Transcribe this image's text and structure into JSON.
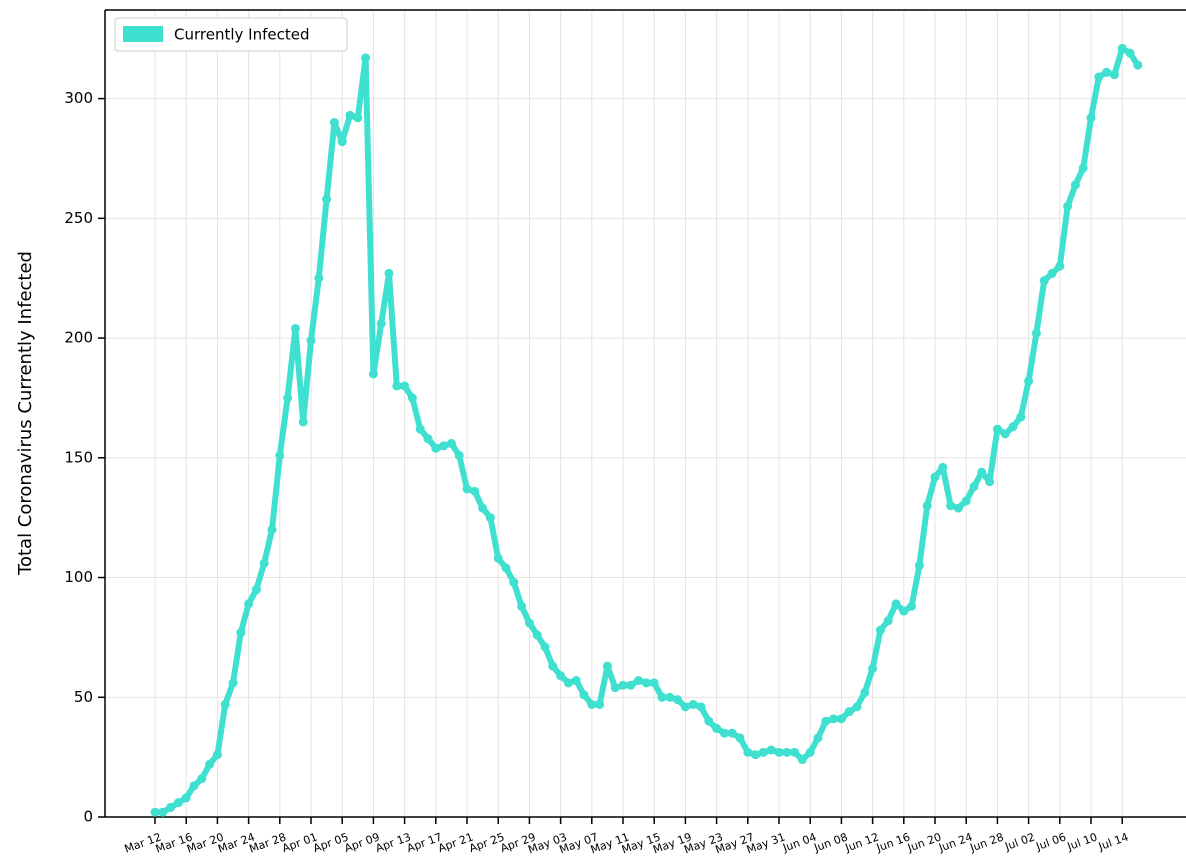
{
  "chart_data": {
    "type": "line",
    "ylabel": "Total Coronavirus Currently Infected",
    "categories": [
      "Mar 12",
      null,
      null,
      null,
      "Mar 16",
      null,
      null,
      null,
      "Mar 20",
      null,
      null,
      null,
      "Mar 24",
      null,
      null,
      null,
      "Mar 28",
      null,
      null,
      null,
      "Apr 01",
      null,
      null,
      null,
      "Apr 05",
      null,
      null,
      null,
      "Apr 09",
      null,
      null,
      null,
      "Apr 13",
      null,
      null,
      null,
      "Apr 17",
      null,
      null,
      null,
      "Apr 21",
      null,
      null,
      null,
      "Apr 25",
      null,
      null,
      null,
      "Apr 29",
      null,
      null,
      null,
      "May 03",
      null,
      null,
      null,
      "May 07",
      null,
      null,
      null,
      "May 11",
      null,
      null,
      null,
      "May 15",
      null,
      null,
      null,
      "May 19",
      null,
      null,
      null,
      "May 23",
      null,
      null,
      null,
      "May 27",
      null,
      null,
      null,
      "May 31",
      null,
      null,
      null,
      "Jun 04",
      null,
      null,
      null,
      "Jun 08",
      null,
      null,
      null,
      "Jun 12",
      null,
      null,
      null,
      "Jun 16",
      null,
      null,
      null,
      "Jun 20",
      null,
      null,
      null,
      "Jun 24",
      null,
      null,
      null,
      "Jun 28",
      null,
      null,
      null,
      "Jul 02",
      null,
      null,
      null,
      "Jul 06",
      null,
      null,
      null,
      "Jul 10",
      null,
      null,
      null,
      "Jul 14",
      null,
      null
    ],
    "series": [
      {
        "name": "Currently Infected",
        "color": "#40e0d0",
        "values": [
          2,
          2,
          4,
          6,
          8,
          13,
          16,
          22,
          26,
          47,
          56,
          77,
          89,
          95,
          106,
          120,
          151,
          175,
          204,
          165,
          199,
          225,
          258,
          290,
          282,
          293,
          292,
          317,
          185,
          206,
          227,
          180,
          180,
          175,
          162,
          158,
          154,
          155,
          156,
          151,
          137,
          136,
          129,
          125,
          108,
          104,
          98,
          88,
          81,
          76,
          71,
          63,
          59,
          56,
          57,
          51,
          47,
          47,
          63,
          54,
          55,
          55,
          57,
          56,
          56,
          50,
          50,
          49,
          46,
          47,
          46,
          40,
          37,
          35,
          35,
          33,
          27,
          26,
          27,
          28,
          27,
          27,
          27,
          24,
          27,
          33,
          40,
          41,
          41,
          44,
          46,
          52,
          62,
          78,
          82,
          89,
          86,
          88,
          105,
          130,
          142,
          146,
          130,
          129,
          132,
          138,
          144,
          140,
          162,
          160,
          163,
          167,
          182,
          202,
          224,
          227,
          230,
          255,
          264,
          271,
          292,
          309,
          311,
          310,
          321,
          319,
          314
        ]
      }
    ],
    "ylim": [
      0,
      337
    ],
    "yticks": [
      0,
      50,
      100,
      150,
      200,
      250,
      300
    ],
    "grid": true,
    "legend": "upper left"
  }
}
